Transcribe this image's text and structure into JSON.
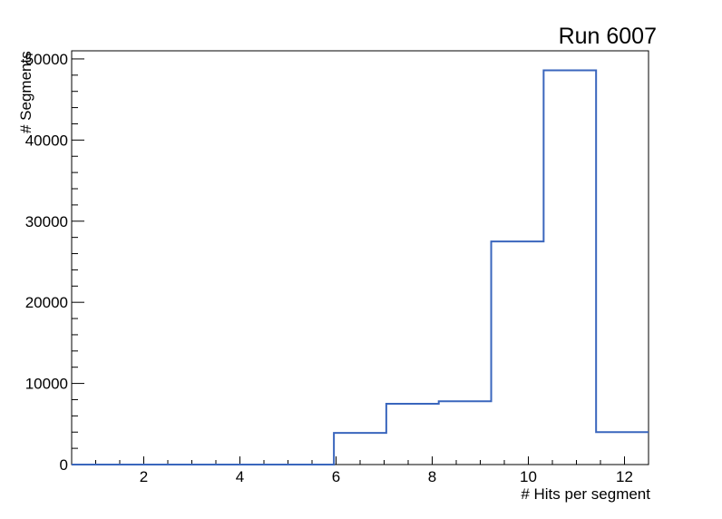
{
  "window": {
    "background": "#FFFFFF"
  },
  "chart_data": {
    "type": "histogram",
    "title": "Run 6007",
    "xlabel": "# Hits per segment",
    "ylabel": "# Segments",
    "xlim": [
      0.5,
      12.5
    ],
    "ylim": [
      0,
      51000
    ],
    "n_bins": 11,
    "bin_edges": [
      0.5,
      1.591,
      2.682,
      3.773,
      4.864,
      5.955,
      7.045,
      8.136,
      9.227,
      10.318,
      11.409,
      12.5
    ],
    "counts": [
      0,
      0,
      0,
      0,
      0,
      3900,
      7500,
      7800,
      27500,
      48600,
      4000
    ],
    "x_major_tick_values": [
      2,
      4,
      6,
      8,
      10,
      12
    ],
    "x_tick_labels": [
      "2",
      "4",
      "6",
      "8",
      "10",
      "12"
    ],
    "x_minor_tick_step": 0.5,
    "y_major_tick_values": [
      0,
      10000,
      20000,
      30000,
      40000,
      50000
    ],
    "y_tick_labels": [
      "0",
      "10000",
      "20000",
      "30000",
      "40000",
      "50000"
    ],
    "y_minor_tick_step": 2000,
    "grid": false,
    "legend": null,
    "line_color": "#3A66BD",
    "axis_color": "#000000"
  }
}
